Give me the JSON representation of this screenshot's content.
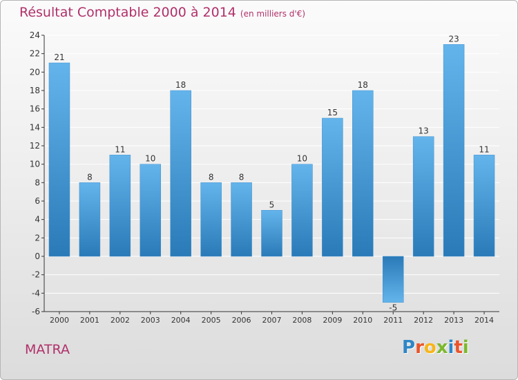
{
  "title": "Résultat Comptable 2000 à 2014",
  "subtitle": "(en milliers d'€)",
  "town": "MATRA",
  "logo": {
    "text": "Proxiti",
    "colors": [
      "#2e86c7",
      "#e9542a",
      "#f7b51b",
      "#7cb82f",
      "#2e86c7",
      "#e9542a",
      "#7cb82f"
    ]
  },
  "colors": {
    "title": "#b0306a",
    "bar_light": "#64b4ec",
    "bar_dark": "#2a7ab8",
    "grid": "#ffffff",
    "axis": "#333333"
  },
  "chart_data": {
    "type": "bar",
    "title": "Résultat Comptable 2000 à 2014",
    "subtitle": "(en milliers d'€)",
    "xlabel": "",
    "ylabel": "",
    "categories": [
      "2000",
      "2001",
      "2002",
      "2003",
      "2004",
      "2005",
      "2006",
      "2007",
      "2008",
      "2009",
      "2010",
      "2011",
      "2012",
      "2013",
      "2014"
    ],
    "values": [
      21,
      8,
      11,
      10,
      18,
      8,
      8,
      5,
      10,
      15,
      18,
      -5,
      13,
      23,
      11
    ],
    "ylim": [
      -6,
      24
    ],
    "yticks": [
      -6,
      -4,
      -2,
      0,
      2,
      4,
      6,
      8,
      10,
      12,
      14,
      16,
      18,
      20,
      22,
      24
    ],
    "grid": true,
    "legend": "none"
  }
}
